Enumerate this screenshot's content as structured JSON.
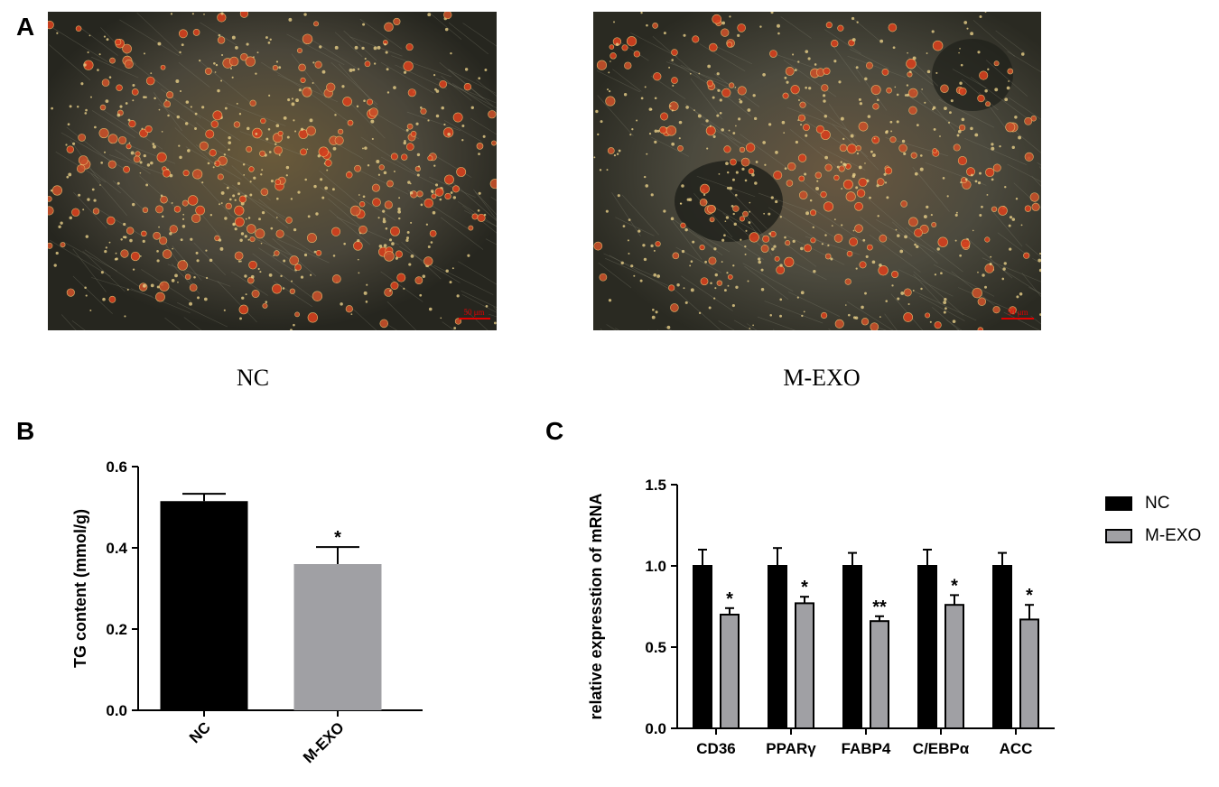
{
  "panels": {
    "a": {
      "letter": "A",
      "images": [
        {
          "caption": "NC",
          "scale_bar": "50 μm"
        },
        {
          "caption": "M-EXO",
          "scale_bar": "50 μm"
        }
      ]
    },
    "b": {
      "letter": "B"
    },
    "c": {
      "letter": "C"
    }
  },
  "colors": {
    "nc": "#000000",
    "mexo": "#a0a0a4",
    "stain": "#d6401e",
    "background_dark": "#2a2a24"
  },
  "chart_data": [
    {
      "panel": "B",
      "type": "bar",
      "categories": [
        "NC",
        "M-EXO"
      ],
      "values": [
        0.515,
        0.36
      ],
      "errors": [
        0.018,
        0.042
      ],
      "significance": [
        "",
        "*"
      ],
      "ylabel": "TG content (mmol/g)",
      "ylim": [
        0,
        0.6
      ],
      "yticks": [
        "0.0",
        "0.2",
        "0.4",
        "0.6"
      ],
      "tick_values": [
        0,
        0.2,
        0.4,
        0.6
      ],
      "colors": [
        "#000000",
        "#a0a0a4"
      ]
    },
    {
      "panel": "C",
      "type": "bar",
      "categories": [
        "CD36",
        "PPARγ",
        "FABP4",
        "C/EBPα",
        "ACC"
      ],
      "series": [
        {
          "name": "NC",
          "values": [
            1.0,
            1.0,
            1.0,
            1.0,
            1.0
          ],
          "errors": [
            0.1,
            0.11,
            0.08,
            0.1,
            0.08
          ],
          "color": "#000000",
          "significance": [
            "",
            "",
            "",
            "",
            ""
          ]
        },
        {
          "name": "M-EXO",
          "values": [
            0.7,
            0.77,
            0.66,
            0.76,
            0.67
          ],
          "errors": [
            0.04,
            0.04,
            0.03,
            0.06,
            0.09
          ],
          "color": "#a0a0a4",
          "significance": [
            "*",
            "*",
            "**",
            "*",
            "*"
          ]
        }
      ],
      "ylabel": "relative expresstion of mRNA",
      "ylim": [
        0,
        1.5
      ],
      "yticks": [
        "0.0",
        "0.5",
        "1.0",
        "1.5"
      ],
      "tick_values": [
        0,
        0.5,
        1.0,
        1.5
      ],
      "legend": "right"
    }
  ]
}
